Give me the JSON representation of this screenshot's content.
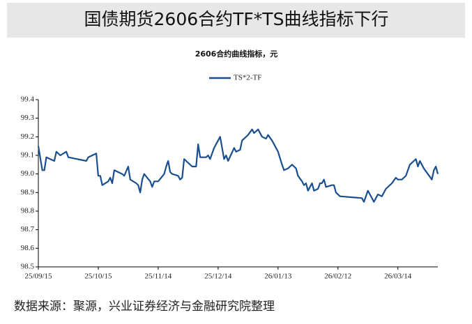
{
  "header_title": "国债期货2606合约TF*TS曲线指标下行",
  "source": "数据来源：聚源，兴业证券经济与金融研究院整理",
  "chart_data": {
    "type": "line",
    "title": "2606合约曲线指标，元",
    "x": [
      "25/09/15",
      "25/09/17",
      "25/09/18",
      "25/09/19",
      "25/09/23",
      "25/09/24",
      "25/09/26",
      "25/09/29",
      "25/09/30",
      "25/10/09",
      "25/10/10",
      "25/10/14",
      "25/10/15",
      "25/10/16",
      "25/10/17",
      "25/10/20",
      "25/10/21",
      "25/10/22",
      "25/10/23",
      "25/10/27",
      "25/10/28",
      "25/10/30",
      "25/10/31",
      "25/11/03",
      "25/11/04",
      "25/11/05",
      "25/11/06",
      "25/11/07",
      "25/11/10",
      "25/11/11",
      "25/11/12",
      "25/11/14",
      "25/11/17",
      "25/11/18",
      "25/11/19",
      "25/11/20",
      "25/11/21",
      "25/11/24",
      "25/11/25",
      "25/11/26",
      "25/11/27",
      "25/11/28",
      "25/12/01",
      "25/12/03",
      "25/12/04",
      "25/12/05",
      "25/12/08",
      "25/12/09",
      "25/12/10",
      "25/12/12",
      "25/12/15",
      "25/12/16",
      "25/12/17",
      "25/12/18",
      "25/12/19",
      "25/12/22",
      "25/12/23",
      "25/12/25",
      "25/12/26",
      "25/12/29",
      "25/12/31",
      "26/01/01",
      "26/01/03",
      "26/01/05",
      "26/01/07",
      "26/01/08",
      "26/01/10",
      "26/01/13",
      "26/01/15",
      "26/01/16",
      "26/01/18",
      "26/01/20",
      "26/01/22",
      "26/01/23",
      "26/01/25",
      "26/01/26",
      "26/01/27",
      "26/01/28",
      "26/01/30",
      "26/01/31",
      "26/02/02",
      "26/02/03",
      "26/02/04",
      "26/02/05",
      "26/02/06",
      "26/02/09",
      "26/02/10",
      "26/02/11",
      "26/02/13",
      "26/02/24",
      "26/02/25",
      "26/02/27",
      "26/02/28",
      "26/03/02",
      "26/03/04",
      "26/03/06",
      "26/03/08",
      "26/03/10",
      "26/03/11",
      "26/03/13",
      "26/03/14",
      "26/03/16",
      "26/03/17",
      "26/03/18",
      "26/03/20",
      "26/03/22",
      "26/03/23",
      "26/03/24",
      "26/03/25",
      "26/03/27",
      "26/03/29",
      "26/03/31",
      "26/04/01",
      "26/04/02",
      "26/04/03"
    ],
    "series": [
      {
        "name": "TS*2-TF",
        "color": "#1a4f8f",
        "values": [
          99.15,
          99.02,
          99.02,
          99.09,
          99.07,
          99.12,
          99.1,
          99.12,
          99.09,
          99.07,
          99.09,
          99.11,
          98.99,
          98.99,
          98.94,
          98.96,
          98.98,
          98.95,
          99.02,
          99.0,
          98.99,
          99.04,
          98.97,
          98.95,
          98.94,
          98.9,
          98.97,
          99.0,
          98.96,
          98.93,
          98.96,
          98.96,
          99.0,
          99.04,
          99.07,
          99.01,
          99.0,
          98.99,
          98.97,
          98.98,
          99.08,
          99.07,
          99.04,
          99.04,
          99.16,
          99.09,
          99.09,
          99.1,
          99.08,
          99.14,
          99.2,
          99.14,
          99.08,
          99.1,
          99.07,
          99.14,
          99.12,
          99.13,
          99.18,
          99.21,
          99.24,
          99.22,
          99.24,
          99.2,
          99.19,
          99.21,
          99.18,
          99.12,
          99.05,
          99.02,
          99.03,
          99.05,
          99.03,
          98.99,
          98.96,
          98.94,
          98.95,
          98.91,
          98.95,
          98.91,
          98.92,
          98.95,
          98.95,
          98.97,
          98.93,
          98.94,
          98.94,
          98.9,
          98.88,
          98.87,
          98.85,
          98.91,
          98.89,
          98.85,
          98.89,
          98.88,
          98.92,
          98.94,
          98.95,
          98.98,
          98.97,
          98.97,
          98.98,
          98.99,
          99.05,
          99.07,
          99.08,
          99.04,
          99.07,
          99.03,
          99.0,
          98.97,
          99.02,
          99.04,
          99.0
        ]
      }
    ],
    "xlim": [
      "25/09/15",
      "26/04/03"
    ],
    "xticks": [
      "25/09/15",
      "25/10/15",
      "25/11/14",
      "25/12/14",
      "26/01/13",
      "26/02/12",
      "26/03/14"
    ],
    "ylim": [
      98.5,
      99.4
    ],
    "yticks": [
      98.5,
      98.6,
      98.7,
      98.8,
      98.9,
      {
        "value": 99,
        "label": "99.0"
      },
      99.1,
      99.2,
      99.3,
      99.4
    ],
    "legend": "top",
    "grid": false
  }
}
